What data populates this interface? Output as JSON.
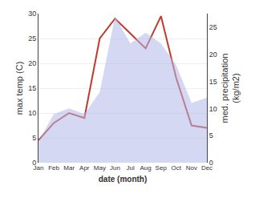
{
  "chart_data": {
    "type": "line",
    "categories": [
      "Jan",
      "Feb",
      "Mar",
      "Apr",
      "May",
      "Jun",
      "Jul",
      "Aug",
      "Sep",
      "Oct",
      "Nov",
      "Dec"
    ],
    "series": [
      {
        "type": "area",
        "color": "#b0b8e8",
        "axis": "y2",
        "values": [
          4.0,
          9.0,
          10.0,
          9.0,
          13.0,
          27.0,
          22.0,
          24.0,
          22.0,
          18.0,
          11.0,
          12.0
        ]
      },
      {
        "type": "line",
        "color": "#c0392b",
        "values": [
          4.5,
          8.0,
          10.0,
          9.0,
          25.0,
          29.0,
          26.0,
          23.0,
          29.5,
          17.0,
          7.5,
          7.0
        ]
      }
    ],
    "xlabel": "date (month)",
    "ylabel": "max temp (C)",
    "y2label": "med. precipitation\n(kg/m2)",
    "ylim": [
      0,
      30
    ],
    "yticks": [
      0,
      5,
      10,
      15,
      20,
      25,
      30
    ],
    "y2lim": [
      0,
      27.5
    ],
    "y2ticks": [
      0,
      5,
      10,
      15,
      20,
      25
    ],
    "grid": true
  }
}
